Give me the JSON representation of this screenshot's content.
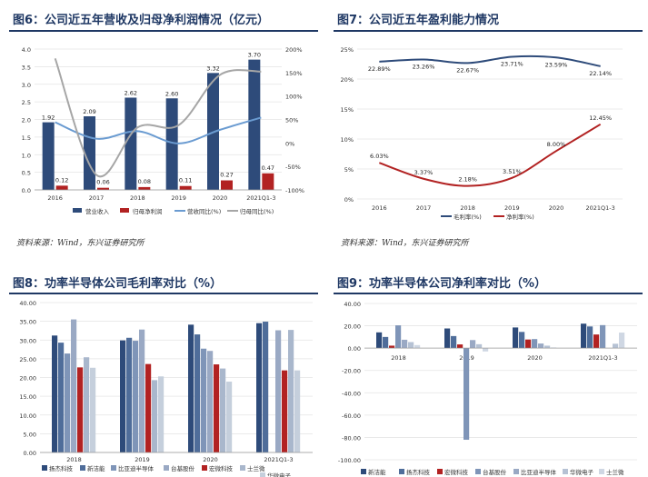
{
  "panels": [
    {
      "title": "图6：公司近五年营收及归母净利润情况（亿元）",
      "source": "资料来源：Wind，东兴证券研究所"
    },
    {
      "title": "图7：公司近五年盈利能力情况",
      "source": "资料来源：Wind，东兴证券研究所"
    },
    {
      "title": "图8：功率半导体公司毛利率对比（%）",
      "source": ""
    },
    {
      "title": "图9：功率半导体公司净利率对比（%）",
      "source": ""
    }
  ],
  "chart_data": [
    {
      "type": "bar",
      "categories": [
        "2016",
        "2017",
        "2018",
        "2019",
        "2020",
        "2021Q1-3"
      ],
      "left_axis": {
        "min": 0,
        "max": 4,
        "ticks": [
          "0.0",
          "0.5",
          "1.0",
          "1.5",
          "2.0",
          "2.5",
          "3.0",
          "3.5",
          "4.0"
        ]
      },
      "right_axis": {
        "min": -100,
        "max": 200,
        "ticks": [
          "-100%",
          "-50%",
          "0%",
          "50%",
          "100%",
          "150%",
          "200%"
        ]
      },
      "series": [
        {
          "name": "营业收入",
          "kind": "bar",
          "color": "#2e4b7a",
          "values": [
            1.92,
            2.09,
            2.62,
            2.6,
            3.32,
            3.7
          ],
          "labels": [
            "1.92",
            "2.09",
            "2.62",
            "2.60",
            "3.32",
            "3.70"
          ]
        },
        {
          "name": "归母净利润",
          "kind": "bar",
          "color": "#b22222",
          "values": [
            0.12,
            0.06,
            0.08,
            0.11,
            0.27,
            0.47
          ],
          "labels": [
            "0.12",
            "0.06",
            "0.08",
            "0.11",
            "0.27",
            "0.47"
          ]
        },
        {
          "name": "营收同比(%)",
          "kind": "line",
          "axis": "right",
          "color": "#6a9bd1",
          "values": [
            44,
            9,
            25,
            -1,
            28,
            54
          ]
        },
        {
          "name": "归母同比(%)",
          "kind": "line",
          "axis": "right",
          "color": "#a6a6a6",
          "values": [
            180,
            -68,
            33,
            38,
            145,
            152
          ]
        }
      ]
    },
    {
      "type": "line",
      "categories": [
        "2016",
        "2017",
        "2018",
        "2019",
        "2020",
        "2021Q1-3"
      ],
      "y_axis": {
        "min": 0,
        "max": 25,
        "ticks": [
          "0%",
          "5%",
          "10%",
          "15%",
          "20%",
          "25%"
        ]
      },
      "series": [
        {
          "name": "毛利率(%)",
          "color": "#2e4b7a",
          "values": [
            22.89,
            23.26,
            22.67,
            23.71,
            23.59,
            22.14
          ],
          "labels": [
            "22.89%",
            "23.26%",
            "22.67%",
            "23.71%",
            "23.59%",
            "22.14%"
          ]
        },
        {
          "name": "净利率(%)",
          "color": "#b22222",
          "values": [
            6.03,
            3.37,
            2.18,
            3.51,
            8.0,
            12.45
          ],
          "labels": [
            "6.03%",
            "3.37%",
            "2.18%",
            "3.51%",
            "8.00%",
            "12.45%"
          ]
        }
      ]
    },
    {
      "type": "bar",
      "categories": [
        "2018",
        "2019",
        "2020",
        "2021Q1-3"
      ],
      "y_axis": {
        "min": 0,
        "max": 40,
        "ticks": [
          "0.00",
          "5.00",
          "10.00",
          "15.00",
          "20.00",
          "25.00",
          "30.00",
          "35.00",
          "40.00"
        ]
      },
      "series": [
        {
          "name": "扬杰科技",
          "color": "#2e4b7a",
          "values": [
            31.2,
            29.9,
            34.1,
            34.5
          ]
        },
        {
          "name": "新洁能",
          "color": "#4f6d9a",
          "values": [
            29.3,
            30.6,
            31.5,
            34.9
          ]
        },
        {
          "name": "比亚迪半导体",
          "color": "#7f95b8",
          "values": [
            26.4,
            29.8,
            27.7,
            null
          ]
        },
        {
          "name": "台基股份",
          "color": "#9aa9c4",
          "values": [
            35.5,
            32.8,
            27.1,
            32.6
          ]
        },
        {
          "name": "宏微科技",
          "color": "#b22222",
          "values": [
            22.7,
            23.6,
            23.5,
            21.9
          ]
        },
        {
          "name": "士兰微",
          "color": "#a9b7cc",
          "values": [
            25.4,
            19.3,
            22.4,
            32.7
          ]
        },
        {
          "name": "华微电子",
          "color": "#c5cfdc",
          "values": [
            22.6,
            20.3,
            18.9,
            21.9
          ]
        }
      ],
      "legend": [
        "扬杰科技",
        "新洁能",
        "比亚迪半导体",
        "台基股份",
        "宏微科技",
        "士兰微",
        "华微电子"
      ]
    },
    {
      "type": "bar",
      "categories": [
        "2018",
        "2019",
        "2020",
        "2021Q1-3"
      ],
      "y_axis": {
        "min": -100,
        "max": 40,
        "ticks": [
          "-100.00",
          "-80.00",
          "-60.00",
          "-40.00",
          "-20.00",
          "0.00",
          "20.00",
          "40.00"
        ]
      },
      "series": [
        {
          "name": "新洁能",
          "color": "#2e4b7a",
          "values": [
            14.1,
            17.6,
            18.5,
            21.9
          ]
        },
        {
          "name": "扬杰科技",
          "color": "#4f6d9a",
          "values": [
            10.0,
            10.8,
            14.5,
            19.4
          ]
        },
        {
          "name": "宏微科技",
          "color": "#b22222",
          "values": [
            2.2,
            3.3,
            7.7,
            12.2
          ]
        },
        {
          "name": "台基股份",
          "color": "#7f95b8",
          "values": [
            20.4,
            -82.1,
            8.1,
            20.6
          ]
        },
        {
          "name": "比亚迪半导体",
          "color": "#9aa9c4",
          "values": [
            7.5,
            7.2,
            4.1,
            null
          ]
        },
        {
          "name": "华微电子",
          "color": "#b6c2d4",
          "values": [
            5.4,
            3.5,
            2.2,
            3.9
          ]
        },
        {
          "name": "士兰微",
          "color": "#cfd7e3",
          "values": [
            2.7,
            -3.0,
            0.6,
            13.9
          ]
        }
      ],
      "legend": [
        "新洁能",
        "扬杰科技",
        "宏微科技",
        "台基股份",
        "比亚迪半导体",
        "华微电子",
        "士兰微"
      ]
    }
  ]
}
